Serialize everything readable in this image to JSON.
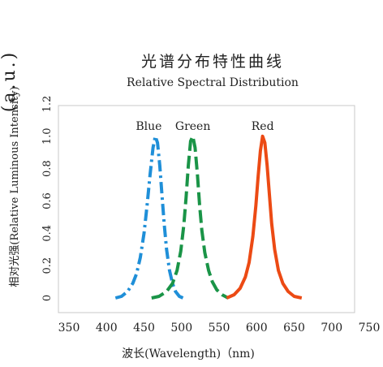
{
  "chart_data": {
    "type": "line",
    "title": "光谱分布特性曲线",
    "subtitle": "Relative Spectral Distribution",
    "xlabel": "波长(Wavelength)（nm)",
    "ylabel": "相对光强(Relative Luminous Intensity)",
    "ylabel_unit": "(a.u.)",
    "xlim": [
      350,
      750
    ],
    "ylim": [
      0,
      1.2
    ],
    "x_ticks": [
      "350",
      "400",
      "450",
      "500",
      "550",
      "600",
      "650",
      "700",
      "750"
    ],
    "y_ticks": [
      "0",
      "0.2",
      "0.4",
      "0.6",
      "0.8",
      "1.0",
      "1.2"
    ],
    "grid": false,
    "series": [
      {
        "name": "Blue",
        "color": "#1f8fd8",
        "style": "dash-dot",
        "x": [
          412,
          420,
          428,
          435,
          440,
          445,
          450,
          454,
          458,
          462,
          465,
          468,
          471,
          474,
          477,
          480,
          484,
          488,
          492,
          497,
          502
        ],
        "y": [
          0.0,
          0.01,
          0.04,
          0.09,
          0.15,
          0.25,
          0.4,
          0.57,
          0.76,
          0.93,
          1.0,
          0.96,
          0.82,
          0.63,
          0.45,
          0.3,
          0.17,
          0.09,
          0.04,
          0.01,
          0.0
        ]
      },
      {
        "name": "Green",
        "color": "#1a9447",
        "style": "dashed",
        "x": [
          460,
          470,
          480,
          488,
          494,
          499,
          503,
          506,
          509,
          512,
          515,
          518,
          521,
          524,
          527,
          531,
          536,
          541,
          547,
          554,
          562
        ],
        "y": [
          0.0,
          0.01,
          0.04,
          0.09,
          0.17,
          0.29,
          0.45,
          0.62,
          0.82,
          0.97,
          1.0,
          0.93,
          0.77,
          0.58,
          0.42,
          0.28,
          0.17,
          0.1,
          0.05,
          0.02,
          0.0
        ]
      },
      {
        "name": "Red",
        "color": "#ec4a14",
        "style": "solid",
        "x": [
          560,
          570,
          578,
          585,
          590,
          595,
          599,
          602,
          605,
          608,
          611,
          614,
          617,
          620,
          624,
          629,
          635,
          642,
          650,
          660
        ],
        "y": [
          0.0,
          0.02,
          0.06,
          0.13,
          0.22,
          0.38,
          0.57,
          0.75,
          0.91,
          1.0,
          0.96,
          0.82,
          0.64,
          0.46,
          0.3,
          0.17,
          0.09,
          0.04,
          0.01,
          0.0
        ]
      }
    ]
  }
}
